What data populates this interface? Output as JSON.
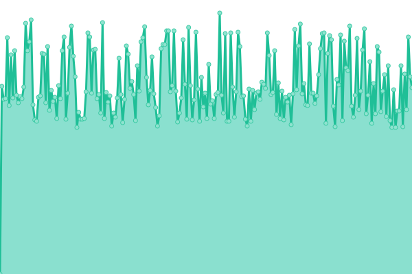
{
  "chart_data": {
    "type": "area",
    "title": "",
    "xlabel": "",
    "ylabel": "",
    "ylim": [
      0,
      400
    ],
    "grid": false,
    "legend": "none",
    "markers": true,
    "colors": {
      "line": "#1fbf97",
      "fill": "#8ae0cf",
      "marker_fill": "#8fe3cf",
      "marker_stroke": "#3ccaa5"
    },
    "values": [
      0,
      274,
      255,
      256,
      345,
      246,
      320,
      257,
      326,
      261,
      250,
      259,
      256,
      273,
      366,
      326,
      339,
      371,
      247,
      225,
      223,
      258,
      260,
      322,
      321,
      250,
      332,
      239,
      268,
      252,
      258,
      227,
      275,
      256,
      326,
      346,
      226,
      264,
      331,
      362,
      318,
      288,
      214,
      236,
      226,
      226,
      227,
      266,
      352,
      346,
      264,
      327,
      328,
      256,
      262,
      235,
      367,
      227,
      265,
      251,
      260,
      216,
      235,
      229,
      257,
      315,
      262,
      221,
      255,
      333,
      321,
      271,
      281,
      262,
      224,
      304,
      267,
      339,
      345,
      361,
      287,
      247,
      268,
      317,
      263,
      243,
      216,
      231,
      329,
      335,
      335,
      355,
      355,
      266,
      275,
      355,
      267,
      222,
      235,
      257,
      342,
      277,
      226,
      360,
      275,
      225,
      254,
      353,
      270,
      223,
      287,
      244,
      264,
      227,
      306,
      248,
      253,
      227,
      262,
      265,
      381,
      261,
      235,
      351,
      223,
      223,
      352,
      273,
      229,
      266,
      353,
      332,
      259,
      260,
      226,
      216,
      270,
      223,
      268,
      240,
      264,
      266,
      255,
      280,
      277,
      271,
      352,
      319,
      262,
      265,
      326,
      233,
      279,
      227,
      267,
      225,
      258,
      251,
      261,
      218,
      263,
      357,
      269,
      333,
      365,
      263,
      278,
      247,
      246,
      336,
      264,
      264,
      249,
      260,
      291,
      329,
      351,
      352,
      220,
      322,
      348,
      342,
      245,
      215,
      284,
      276,
      349,
      224,
      340,
      301,
      297,
      362,
      245,
      229,
      261,
      344,
      240,
      267,
      327,
      358,
      234,
      261,
      310,
      220,
      278,
      234,
      332,
      324,
      237,
      267,
      291,
      230,
      304,
      224,
      214,
      269,
      214,
      238,
      238,
      304,
      215,
      292,
      240,
      346,
      288,
      272
    ]
  }
}
